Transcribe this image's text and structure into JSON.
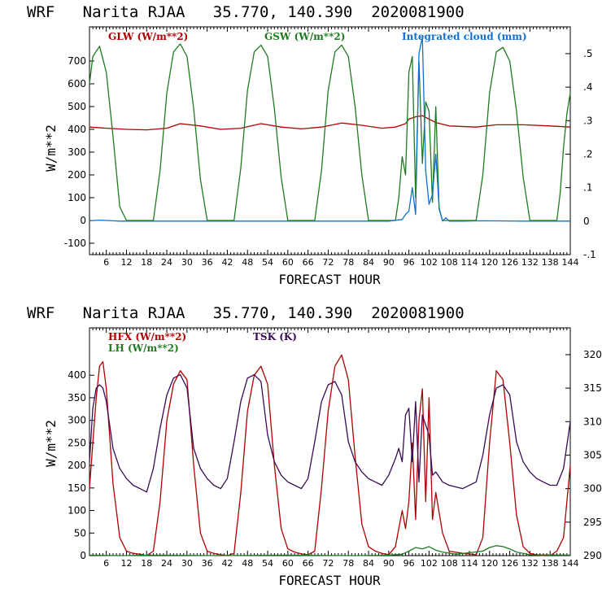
{
  "colors": {
    "red": "#b00000",
    "green": "#1f7a1f",
    "blue": "#1070d0",
    "purple": "#3a0a55",
    "axis": "#000000"
  },
  "chart_data": [
    {
      "type": "line",
      "title": "WRF   Narita RJAA   35.770, 140.390  2020081900",
      "xlabel": "FORECAST HOUR",
      "ylabel": "W/m**2",
      "xlim": [
        1,
        144
      ],
      "ylim": [
        -150,
        850
      ],
      "y2lim": [
        -0.1,
        0.58
      ],
      "xticks": [
        "6",
        "12",
        "18",
        "24",
        "30",
        "36",
        "42",
        "48",
        "54",
        "60",
        "66",
        "72",
        "78",
        "84",
        "90",
        "96",
        "102",
        "108",
        "114",
        "120",
        "126",
        "132",
        "138",
        "144"
      ],
      "yticks": [
        "-100",
        "0",
        "100",
        "200",
        "300",
        "400",
        "500",
        "600",
        "700"
      ],
      "y2ticks": [
        "-.1",
        "0",
        ".1",
        ".2",
        ".3",
        ".4",
        ".5"
      ],
      "series": [
        {
          "name": "GLW (W/m**2)",
          "axis": "left",
          "color": "red",
          "x": [
            1,
            6,
            12,
            18,
            24,
            28,
            34,
            40,
            46,
            52,
            58,
            64,
            70,
            76,
            82,
            88,
            92,
            95,
            96,
            98,
            100,
            102,
            104,
            108,
            116,
            122,
            130,
            138,
            144
          ],
          "y": [
            410,
            405,
            400,
            398,
            405,
            425,
            415,
            400,
            405,
            425,
            410,
            402,
            410,
            428,
            418,
            405,
            410,
            425,
            445,
            455,
            460,
            445,
            430,
            415,
            410,
            420,
            420,
            415,
            410
          ]
        },
        {
          "name": "GSW (W/m**2)",
          "axis": "left",
          "color": "green",
          "x": [
            1,
            2,
            4,
            6,
            8,
            10,
            12,
            16,
            20,
            22,
            24,
            26,
            28,
            30,
            32,
            34,
            36,
            40,
            44,
            46,
            48,
            50,
            52,
            54,
            56,
            58,
            60,
            64,
            68,
            70,
            72,
            74,
            76,
            78,
            80,
            82,
            84,
            88,
            92,
            93,
            94,
            95,
            96,
            97,
            98,
            99,
            100,
            101,
            102,
            103,
            104,
            105,
            106,
            110,
            116,
            118,
            120,
            122,
            124,
            126,
            128,
            130,
            132,
            136,
            140,
            141,
            142,
            143,
            144
          ],
          "y": [
            600,
            720,
            765,
            650,
            370,
            60,
            0,
            0,
            0,
            220,
            560,
            740,
            775,
            720,
            490,
            180,
            0,
            0,
            0,
            230,
            570,
            740,
            770,
            720,
            490,
            190,
            0,
            0,
            0,
            220,
            570,
            740,
            770,
            720,
            500,
            200,
            0,
            0,
            0,
            100,
            280,
            200,
            650,
            720,
            100,
            700,
            250,
            520,
            480,
            80,
            500,
            50,
            0,
            0,
            0,
            200,
            560,
            740,
            760,
            700,
            480,
            190,
            0,
            0,
            0,
            120,
            320,
            470,
            560
          ]
        },
        {
          "name": "Integrated cloud (mm)",
          "axis": "right",
          "color": "blue",
          "x": [
            1,
            4,
            6,
            8,
            10,
            12,
            20,
            40,
            60,
            80,
            90,
            94,
            95,
            96,
            97,
            98,
            99,
            100,
            101,
            102,
            103,
            104,
            105,
            106,
            107,
            108,
            112,
            118,
            130,
            144
          ],
          "y": [
            0.001,
            0.003,
            0.002,
            0.001,
            0,
            0,
            0,
            0,
            0,
            0,
            0,
            0.005,
            0.02,
            0.03,
            0.1,
            0.02,
            0.5,
            0.55,
            0.15,
            0.05,
            0.08,
            0.2,
            0.04,
            0,
            0.01,
            0,
            0,
            0.001,
            0,
            0
          ]
        }
      ],
      "legend": [
        "GLW (W/m**2)",
        "GSW (W/m**2)",
        "Integrated cloud (mm)"
      ]
    },
    {
      "type": "line",
      "title": "WRF   Narita RJAA   35.770, 140.390  2020081900",
      "xlabel": "FORECAST HOUR",
      "ylabel": "W/m**2",
      "xlim": [
        1,
        144
      ],
      "ylim": [
        0,
        505
      ],
      "y2lim": [
        290,
        324
      ],
      "xticks": [
        "6",
        "12",
        "18",
        "24",
        "30",
        "36",
        "42",
        "48",
        "54",
        "60",
        "66",
        "72",
        "78",
        "84",
        "90",
        "96",
        "102",
        "108",
        "114",
        "120",
        "126",
        "132",
        "138",
        "144"
      ],
      "yticks": [
        "0",
        "50",
        "100",
        "150",
        "200",
        "250",
        "300",
        "350",
        "400"
      ],
      "y2ticks": [
        "290",
        "295",
        "300",
        "305",
        "310",
        "315",
        "320"
      ],
      "series": [
        {
          "name": "HFX (W/m**2)",
          "axis": "left",
          "color": "red",
          "x": [
            1,
            2,
            3,
            4,
            5,
            6,
            8,
            10,
            12,
            14,
            16,
            18,
            20,
            22,
            24,
            26,
            28,
            30,
            32,
            34,
            36,
            38,
            40,
            42,
            44,
            46,
            48,
            50,
            52,
            54,
            56,
            58,
            60,
            62,
            64,
            66,
            68,
            70,
            72,
            74,
            76,
            78,
            80,
            82,
            84,
            86,
            88,
            90,
            92,
            93,
            94,
            95,
            96,
            97,
            98,
            99,
            100,
            101,
            102,
            103,
            104,
            106,
            108,
            112,
            116,
            118,
            120,
            122,
            124,
            126,
            128,
            130,
            132,
            134,
            136,
            138,
            140,
            142,
            144
          ],
          "y": [
            150,
            250,
            350,
            420,
            430,
            370,
            160,
            40,
            10,
            5,
            3,
            0,
            10,
            120,
            300,
            380,
            410,
            390,
            200,
            50,
            10,
            5,
            2,
            0,
            5,
            140,
            320,
            400,
            420,
            380,
            200,
            60,
            15,
            8,
            4,
            2,
            10,
            150,
            320,
            420,
            445,
            390,
            220,
            70,
            20,
            10,
            5,
            2,
            20,
            60,
            100,
            60,
            120,
            250,
            80,
            300,
            370,
            120,
            350,
            80,
            140,
            50,
            10,
            5,
            2,
            40,
            250,
            410,
            390,
            250,
            90,
            20,
            5,
            2,
            0,
            0,
            10,
            40,
            200
          ]
        },
        {
          "name": "LH (W/m**2)",
          "axis": "left",
          "color": "green",
          "x": [
            1,
            10,
            20,
            40,
            60,
            80,
            90,
            94,
            96,
            98,
            100,
            102,
            104,
            106,
            110,
            118,
            120,
            122,
            124,
            126,
            128,
            132,
            144
          ],
          "y": [
            1,
            0,
            1,
            0,
            1,
            0,
            1,
            3,
            10,
            18,
            15,
            20,
            12,
            8,
            3,
            10,
            18,
            22,
            20,
            15,
            8,
            2,
            1
          ]
        },
        {
          "name": "TSK (K)",
          "axis": "right",
          "color": "purple",
          "x": [
            1,
            2,
            3,
            4,
            5,
            6,
            8,
            10,
            12,
            14,
            16,
            18,
            20,
            22,
            24,
            26,
            28,
            30,
            32,
            34,
            36,
            38,
            40,
            42,
            44,
            46,
            48,
            50,
            52,
            54,
            56,
            58,
            60,
            62,
            64,
            66,
            68,
            70,
            72,
            74,
            76,
            78,
            80,
            82,
            84,
            86,
            88,
            90,
            92,
            93,
            94,
            95,
            96,
            97,
            98,
            99,
            100,
            101,
            102,
            103,
            104,
            106,
            108,
            112,
            116,
            118,
            120,
            122,
            124,
            126,
            128,
            130,
            132,
            134,
            136,
            138,
            140,
            142,
            144
          ],
          "y": [
            304,
            312,
            315,
            315.5,
            315,
            313,
            306,
            303,
            301.5,
            300.5,
            300,
            299.5,
            303,
            309,
            314,
            316.5,
            317,
            315,
            306,
            303,
            301.5,
            300.5,
            300,
            301.5,
            307,
            313,
            316.5,
            317,
            316,
            308,
            304,
            302,
            301,
            300.5,
            300,
            301.5,
            307,
            313,
            315.5,
            316,
            314,
            307,
            304,
            302.5,
            301.5,
            301,
            300.5,
            302,
            304.5,
            306,
            304,
            311,
            312,
            304,
            313,
            301,
            311,
            309.5,
            308,
            302,
            302.5,
            301,
            300.5,
            300,
            301,
            305,
            311,
            315,
            315.5,
            314,
            307,
            304,
            302.5,
            301.5,
            301,
            300.5,
            300.5,
            303,
            310
          ]
        }
      ],
      "legend": [
        "HFX (W/m**2)",
        "LH (W/m**2)",
        "TSK (K)"
      ]
    }
  ]
}
